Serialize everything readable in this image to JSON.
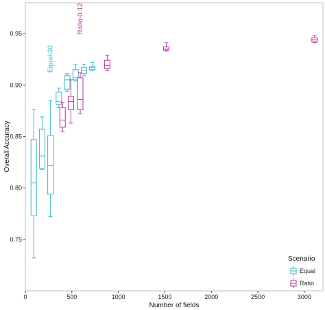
{
  "chart_data": {
    "type": "box",
    "xlabel": "Number of fields",
    "ylabel": "Overall Accuracy",
    "xlim": [
      0,
      3200
    ],
    "ylim": [
      0.7,
      0.98
    ],
    "x_ticks": [
      0,
      500,
      1000,
      1500,
      2000,
      2500,
      3000
    ],
    "y_ticks": [
      0.75,
      0.8,
      0.85,
      0.9,
      0.95
    ],
    "y_tick_labels": [
      "0.75",
      "0.80",
      "0.85",
      "0.90",
      "0.95"
    ],
    "grid": false,
    "legend": {
      "title": "Scenario",
      "placement": "bottom-right"
    },
    "series": [
      {
        "name": "Equal",
        "color": "#3cb8cc",
        "boxes": [
          {
            "x": 90,
            "min": 0.732,
            "q1": 0.773,
            "median": 0.805,
            "q3": 0.847,
            "max": 0.876
          },
          {
            "x": 180,
            "min": 0.818,
            "q1": 0.819,
            "median": 0.831,
            "q3": 0.857,
            "max": 0.869
          },
          {
            "x": 270,
            "min": 0.772,
            "q1": 0.794,
            "median": 0.822,
            "q3": 0.851,
            "max": 0.885
          },
          {
            "x": 360,
            "min": 0.878,
            "q1": 0.881,
            "median": 0.884,
            "q3": 0.893,
            "max": 0.897
          },
          {
            "x": 450,
            "min": 0.894,
            "q1": 0.896,
            "median": 0.905,
            "q3": 0.909,
            "max": 0.911
          },
          {
            "x": 540,
            "min": 0.904,
            "q1": 0.905,
            "median": 0.907,
            "q3": 0.915,
            "max": 0.92
          },
          {
            "x": 630,
            "min": 0.909,
            "q1": 0.911,
            "median": 0.914,
            "q3": 0.917,
            "max": 0.92
          },
          {
            "x": 720,
            "min": 0.914,
            "q1": 0.915,
            "median": 0.917,
            "q3": 0.918,
            "max": 0.922
          }
        ]
      },
      {
        "name": "Ratio",
        "color": "#bb3399",
        "boxes": [
          {
            "x": 400,
            "min": 0.855,
            "q1": 0.859,
            "median": 0.866,
            "q3": 0.878,
            "max": 0.883
          },
          {
            "x": 490,
            "min": 0.863,
            "q1": 0.876,
            "median": 0.884,
            "q3": 0.889,
            "max": 0.905
          },
          {
            "x": 590,
            "min": 0.872,
            "q1": 0.876,
            "median": 0.886,
            "q3": 0.907,
            "max": 0.912
          },
          {
            "x": 880,
            "min": 0.914,
            "q1": 0.916,
            "median": 0.919,
            "q3": 0.924,
            "max": 0.929
          },
          {
            "x": 1515,
            "min": 0.933,
            "q1": 0.934,
            "median": 0.935,
            "q3": 0.937,
            "max": 0.941
          },
          {
            "x": 3110,
            "min": 0.941,
            "q1": 0.942,
            "median": 0.944,
            "q3": 0.946,
            "max": 0.948
          }
        ]
      }
    ],
    "annotations": [
      {
        "text": "Equal-30",
        "series": "Equal",
        "x": 270,
        "y": 0.912
      },
      {
        "text": "Ratio-0.12",
        "series": "Ratio",
        "x": 590,
        "y": 0.949
      }
    ]
  }
}
